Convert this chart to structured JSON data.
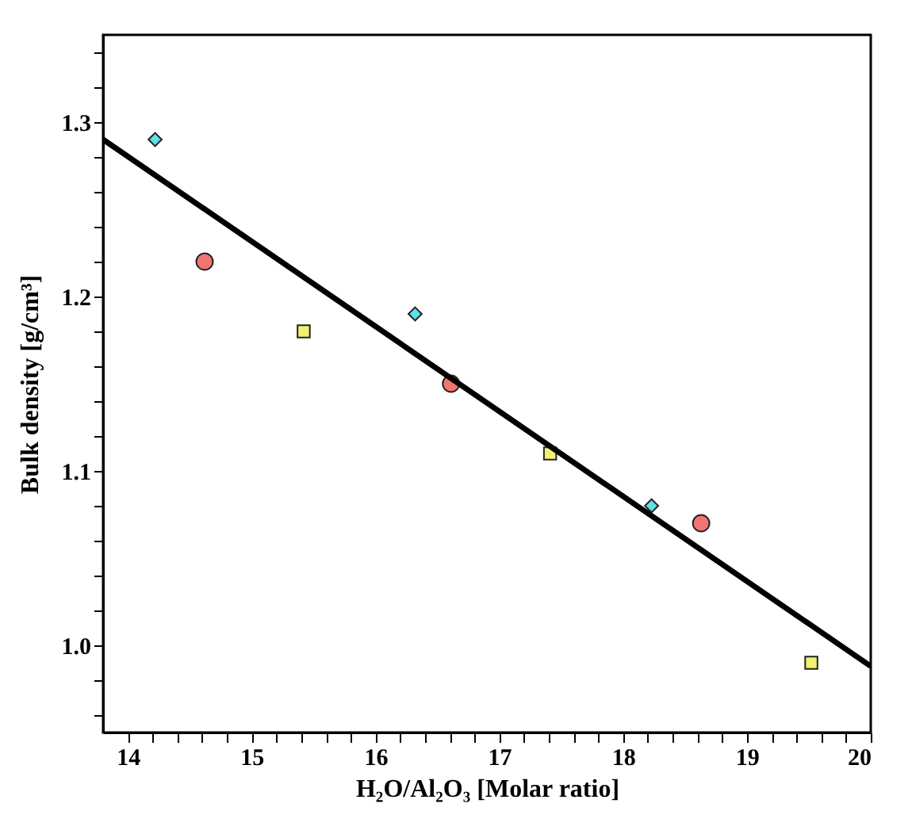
{
  "chart_data": {
    "type": "scatter",
    "xlabel": "H₂O/Al₂O₃ [Molar ratio]",
    "ylabel": "Bulk density [g/cm³]",
    "xlim": [
      13.8,
      20
    ],
    "ylim": [
      0.95,
      1.35
    ],
    "xticks": [
      14,
      {
        "value": 14.2,
        "label": null
      },
      {
        "value": 14.4,
        "label": null
      },
      {
        "value": 14.6,
        "label": null
      },
      {
        "value": 14.8,
        "label": null
      },
      15,
      {
        "value": 15.2,
        "label": null
      },
      {
        "value": 15.4,
        "label": null
      },
      {
        "value": 15.6,
        "label": null
      },
      {
        "value": 15.8,
        "label": null
      },
      16,
      {
        "value": 16.2,
        "label": null
      },
      {
        "value": 16.4,
        "label": null
      },
      {
        "value": 16.6,
        "label": null
      },
      {
        "value": 16.8,
        "label": null
      },
      17,
      {
        "value": 17.2,
        "label": null
      },
      {
        "value": 17.4,
        "label": null
      },
      {
        "value": 17.6,
        "label": null
      },
      {
        "value": 17.8,
        "label": null
      },
      18,
      {
        "value": 18.2,
        "label": null
      },
      {
        "value": 18.4,
        "label": null
      },
      {
        "value": 18.6,
        "label": null
      },
      {
        "value": 18.8,
        "label": null
      },
      19,
      {
        "value": 19.2,
        "label": null
      },
      {
        "value": 19.4,
        "label": null
      },
      {
        "value": 19.6,
        "label": null
      },
      {
        "value": 19.8,
        "label": null
      },
      20
    ],
    "yticks": [
      {
        "value": 0.96,
        "label": null
      },
      {
        "value": 0.98,
        "label": null
      },
      {
        "value": 1.0,
        "label": "1.0"
      },
      {
        "value": 1.02,
        "label": null
      },
      {
        "value": 1.04,
        "label": null
      },
      {
        "value": 1.06,
        "label": null
      },
      {
        "value": 1.08,
        "label": null
      },
      {
        "value": 1.1,
        "label": "1.1"
      },
      {
        "value": 1.12,
        "label": null
      },
      {
        "value": 1.14,
        "label": null
      },
      {
        "value": 1.16,
        "label": null
      },
      {
        "value": 1.18,
        "label": null
      },
      {
        "value": 1.2,
        "label": "1.2"
      },
      {
        "value": 1.22,
        "label": null
      },
      {
        "value": 1.24,
        "label": null
      },
      {
        "value": 1.26,
        "label": null
      },
      {
        "value": 1.28,
        "label": null
      },
      {
        "value": 1.3,
        "label": "1.3"
      },
      {
        "value": 1.32,
        "label": null
      },
      {
        "value": 1.34,
        "label": null
      }
    ],
    "grid": false,
    "series": [
      {
        "marker": "diamond",
        "color": "#5ee0e6",
        "x": [
          14.22,
          16.32,
          18.23
        ],
        "values": [
          1.29,
          1.19,
          1.08
        ]
      },
      {
        "marker": "circle",
        "color": "#f07672",
        "x": [
          14.62,
          16.61,
          18.63
        ],
        "values": [
          1.22,
          1.15,
          1.07
        ]
      },
      {
        "marker": "square",
        "color": "#f2f06e",
        "x": [
          15.42,
          17.41,
          19.52
        ],
        "values": [
          1.18,
          1.11,
          0.99
        ]
      },
      {
        "type": "line",
        "marker": "none",
        "line_style": "solid",
        "color": "#000000",
        "x": [
          13.8,
          20
        ],
        "values": [
          1.29,
          0.988
        ]
      }
    ]
  }
}
